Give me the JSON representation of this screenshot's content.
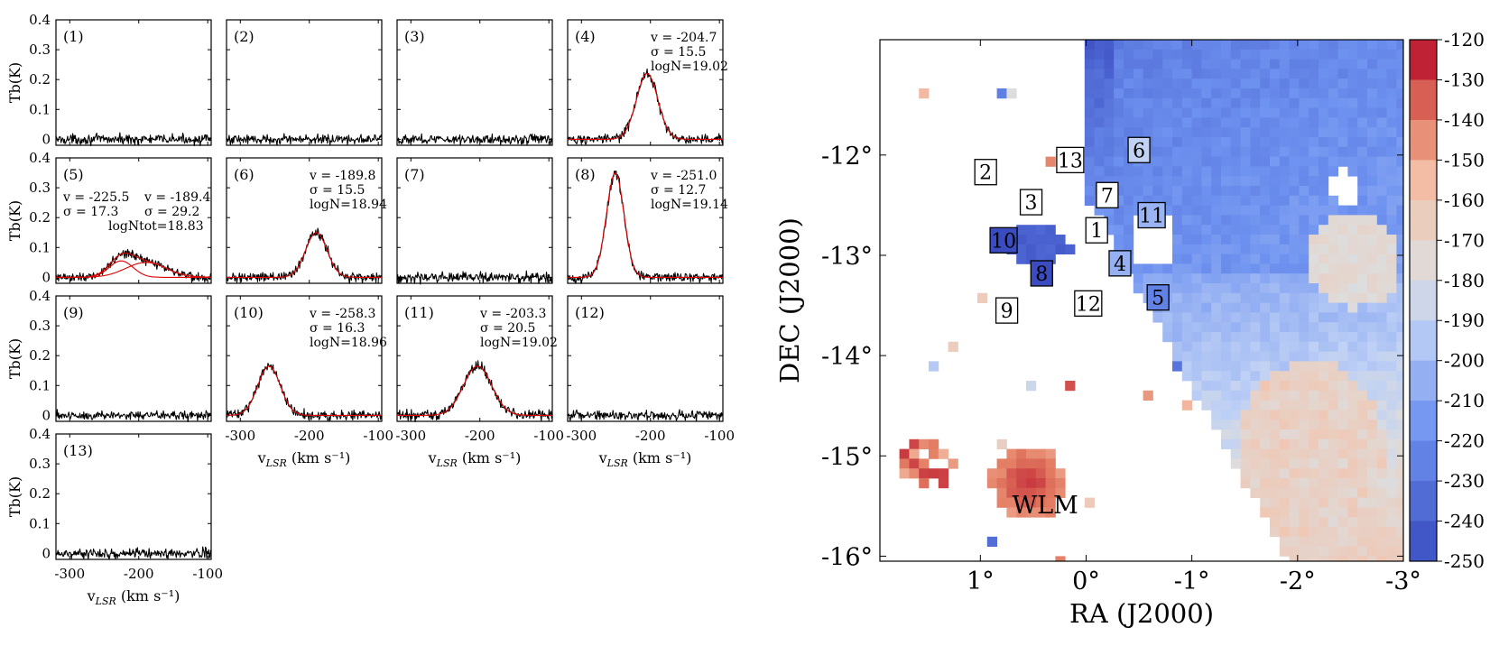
{
  "chart_data": [
    {
      "type": "line",
      "description_kind": "spectra-grid",
      "ylabel": "Tb(K)",
      "xlabel": "vLSR (km s⁻¹)",
      "xlabel_main": "v",
      "xlabel_sub": "LSR",
      "xlabel_units": " (km s⁻¹)",
      "xlim": [
        -320,
        -95
      ],
      "ylim": [
        -0.02,
        0.4
      ],
      "x_ticks": [
        -300,
        -200,
        -100
      ],
      "y_ticks": [
        0,
        0.1,
        0.2,
        0.3,
        0.4
      ],
      "x_ticklabels": [
        "-300",
        "-200",
        "-100"
      ],
      "y_ticklabels": [
        "0",
        "0.1",
        "0.2",
        "0.3",
        "0.4"
      ],
      "colors": {
        "data": "#000000",
        "fit": "#e00000"
      },
      "panels": [
        {
          "label": "(1)",
          "annotation": [],
          "components": []
        },
        {
          "label": "(2)",
          "annotation": [],
          "components": []
        },
        {
          "label": "(3)",
          "annotation": [],
          "components": []
        },
        {
          "label": "(4)",
          "annotation": [
            "v = -204.7",
            "σ = 15.5",
            "logN=19.02"
          ],
          "components": [
            {
              "amp": 0.22,
              "mu": -204.7,
              "sigma": 15.5
            }
          ]
        },
        {
          "label": "(5)",
          "annotation": [
            "v = -225.5",
            "σ = 17.3",
            "v = -189.4",
            "σ = 29.2",
            "logNtot=18.83"
          ],
          "components": [
            {
              "amp": 0.055,
              "mu": -225.5,
              "sigma": 17.3
            },
            {
              "amp": 0.05,
              "mu": -189.4,
              "sigma": 29.2
            }
          ]
        },
        {
          "label": "(6)",
          "annotation": [
            "v = -189.8",
            "σ = 15.5",
            "logN=18.94"
          ],
          "components": [
            {
              "amp": 0.15,
              "mu": -189.8,
              "sigma": 15.5
            }
          ]
        },
        {
          "label": "(7)",
          "annotation": [],
          "components": []
        },
        {
          "label": "(8)",
          "annotation": [
            "v = -251.0",
            "σ = 12.7",
            "logN=19.14"
          ],
          "components": [
            {
              "amp": 0.35,
              "mu": -251.0,
              "sigma": 12.7
            }
          ]
        },
        {
          "label": "(9)",
          "annotation": [],
          "components": []
        },
        {
          "label": "(10)",
          "annotation": [
            "v = -258.3",
            "σ = 16.3",
            "logN=18.96"
          ],
          "components": [
            {
              "amp": 0.165,
              "mu": -258.3,
              "sigma": 16.3
            }
          ]
        },
        {
          "label": "(11)",
          "annotation": [
            "v = -203.3",
            "σ = 20.5",
            "logN=19.02"
          ],
          "components": [
            {
              "amp": 0.165,
              "mu": -203.3,
              "sigma": 20.5
            }
          ]
        },
        {
          "label": "(12)",
          "annotation": [],
          "components": []
        },
        {
          "label": "(13)",
          "annotation": [],
          "components": []
        }
      ]
    },
    {
      "type": "heatmap",
      "xlabel": "RA (J2000)",
      "ylabel": "DEC (J2000)",
      "x_ticks": [
        1,
        0,
        -1,
        -2,
        -3
      ],
      "x_ticklabels": [
        "1°",
        "0°",
        "-1°",
        "-2°",
        "-3°"
      ],
      "y_ticks": [
        -12,
        -13,
        -14,
        -15,
        -16
      ],
      "y_ticklabels": [
        "-12°",
        "-13°",
        "-14°",
        "-15°",
        "-16°"
      ],
      "xlim": [
        1.95,
        -3.0
      ],
      "ylim": [
        -16.05,
        -10.85
      ],
      "colorbar": {
        "min": -250,
        "max": -120,
        "ticks": [
          -120,
          -130,
          -140,
          -150,
          -160,
          -170,
          -180,
          -190,
          -200,
          -210,
          -220,
          -230,
          -240,
          -250
        ],
        "ticklabels": [
          "-120",
          "-130",
          "-140",
          "-150",
          "-160",
          "-170",
          "-180",
          "-190",
          "-200",
          "-210",
          "-220",
          "-230",
          "-240",
          "-250"
        ]
      },
      "galaxy_label": {
        "text": "WLM",
        "ra": 0.7,
        "dec": -15.5
      },
      "boxes": [
        {
          "n": "1",
          "ra": -0.1,
          "dec": -12.75,
          "value": null
        },
        {
          "n": "2",
          "ra": 0.95,
          "dec": -12.17,
          "value": null
        },
        {
          "n": "3",
          "ra": 0.52,
          "dec": -12.47,
          "value": null
        },
        {
          "n": "4",
          "ra": -0.32,
          "dec": -13.08,
          "value": -204.7
        },
        {
          "n": "5",
          "ra": -0.68,
          "dec": -13.42,
          "value": -225.5
        },
        {
          "n": "6",
          "ra": -0.5,
          "dec": -11.95,
          "value": -189.8
        },
        {
          "n": "7",
          "ra": -0.2,
          "dec": -12.4,
          "value": null
        },
        {
          "n": "8",
          "ra": 0.42,
          "dec": -13.18,
          "value": -251.0
        },
        {
          "n": "9",
          "ra": 0.75,
          "dec": -13.55,
          "value": null
        },
        {
          "n": "10",
          "ra": 0.78,
          "dec": -12.85,
          "value": -258.3
        },
        {
          "n": "11",
          "ra": -0.62,
          "dec": -12.6,
          "value": -203.3
        },
        {
          "n": "12",
          "ra": -0.02,
          "dec": -13.48,
          "value": null
        },
        {
          "n": "13",
          "ra": 0.15,
          "dec": -12.05,
          "value": null
        }
      ]
    }
  ]
}
